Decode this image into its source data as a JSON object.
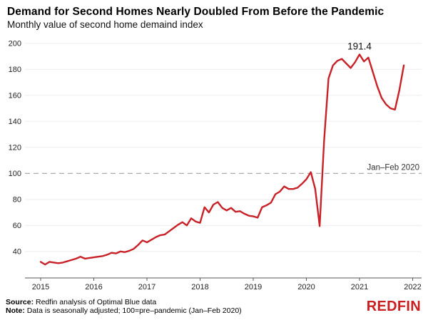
{
  "header": {
    "title": "Demand for Second Homes Nearly Doubled From Before the Pandemic",
    "subtitle": "Monthly value of second home demaind index"
  },
  "footer": {
    "source_label": "Source:",
    "source_text": " Redfin analysis of Optimal Blue data",
    "note_label": "Note:",
    "note_text": " Data is seasonally adjusted; 100=pre–pandemic (Jan–Feb 2020)",
    "brand": "REDFIN"
  },
  "colors": {
    "line": "#c82127",
    "brand": "#c82021",
    "grid": "#ededed",
    "ref_line": "#a3a3a3",
    "axis": "#555555",
    "tick_text": "#222222",
    "annotation_text": "#111111"
  },
  "chart_data": {
    "type": "line",
    "title": "Demand for Second Homes Nearly Doubled From Before the Pandemic",
    "subtitle": "Monthly value of second home demaind index",
    "x_start": "2015-01",
    "x_interval": "month",
    "x_ticks": [
      2015,
      2016,
      2017,
      2018,
      2019,
      2020,
      2021,
      2022
    ],
    "y_ticks": [
      40,
      60,
      80,
      100,
      120,
      140,
      160,
      180,
      200
    ],
    "ylim": [
      20,
      205
    ],
    "grid": true,
    "legend": "none",
    "reference_line": {
      "value": 100,
      "label": "Jan–Feb 2020"
    },
    "annotation": {
      "text": "191.4",
      "month": "2021-01",
      "value": 191.4
    },
    "series": [
      {
        "name": "Second home demand index",
        "values": [
          32,
          30,
          32,
          31.5,
          31,
          31.5,
          32.5,
          33.5,
          34.5,
          36,
          34.5,
          35,
          35.5,
          36,
          36.5,
          37.5,
          39,
          38.5,
          40,
          39.5,
          40.5,
          42,
          45,
          48.5,
          47,
          49,
          51,
          52.5,
          53,
          55.5,
          58,
          60.5,
          62.5,
          60,
          65.5,
          63,
          62,
          74,
          70,
          76,
          78,
          73.5,
          71.5,
          73.5,
          70.5,
          71,
          69,
          67.5,
          67,
          66,
          74,
          75.5,
          77.5,
          84,
          86,
          90,
          88,
          88,
          89,
          92,
          95.5,
          101,
          88,
          59.5,
          125,
          173,
          183,
          186.5,
          188,
          184.5,
          181,
          185.5,
          191.4,
          186,
          189,
          178,
          167,
          158,
          153,
          150,
          149,
          164,
          183
        ]
      }
    ]
  }
}
